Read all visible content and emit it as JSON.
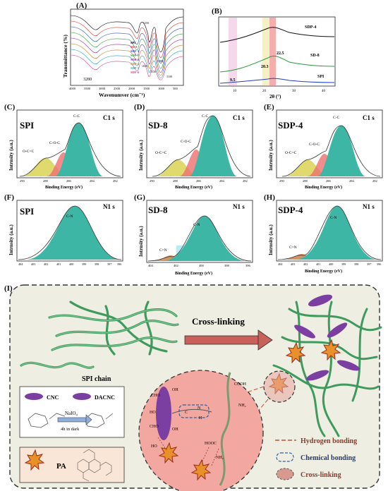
{
  "panels": {
    "A": {
      "label": "(A)",
      "xlabel": "Wavenumver (cm⁻¹)",
      "ylabel": "Transmittance (%)",
      "xticks": [
        "4000",
        "3500",
        "3000",
        "2500",
        "2000",
        "1500",
        "1000",
        "500"
      ],
      "legend": [
        "SPI",
        "SD-8",
        "SDF-1",
        "SDF-2",
        "SDP-3",
        "SDP-4",
        "SDP-5",
        "SDF-6"
      ],
      "annotations": {
        "a3280": "3280",
        "a1630": "1630",
        "a1530": "1530",
        "a1250": "1250",
        "a1380": "1380",
        "a1100": "1100"
      }
    },
    "B": {
      "label": "(B)",
      "xlabel": "2θ (°)",
      "xticks": [
        "10",
        "20",
        "30",
        "40"
      ],
      "series": [
        "SDP-4",
        "SD-8",
        "SPI"
      ],
      "peaks": {
        "p95": "9.5",
        "p203": "20.3",
        "p225": "22.5"
      }
    },
    "C": {
      "label": "(C)",
      "title": "SPI",
      "tag": "C1 s",
      "xlabel": "Binding Energy (eV)",
      "ylabel": "Intrnsity (a.u.)",
      "xticks": [
        "290",
        "288",
        "286",
        "284",
        "282"
      ],
      "peaks": {
        "occ": "O-C=C",
        "coc": "C-O-C",
        "cc": "C-C"
      }
    },
    "D": {
      "label": "(D)",
      "title": "SD-8",
      "tag": "C1 s",
      "xlabel": "Binding Energy (eV)",
      "ylabel": "Intrnsity (a.u.)",
      "xticks": [
        "290",
        "288",
        "286",
        "284",
        "282"
      ],
      "peaks": {
        "occ": "O-C=C",
        "coc": "C-O-C",
        "cc": "C-C"
      }
    },
    "E": {
      "label": "(E)",
      "title": "SDP-4",
      "tag": "C1 s",
      "xlabel": "Binding Energy (eV)",
      "ylabel": "Intrnsity (a.u.)",
      "xticks": [
        "290",
        "288",
        "286",
        "284",
        "282"
      ],
      "peaks": {
        "occ": "O-C=C",
        "coc": "C-O-C",
        "cc": "C-C"
      }
    },
    "F": {
      "label": "(F)",
      "title": "SPI",
      "tag": "N1 s",
      "xlabel": "Binding Energy (eV)",
      "ylabel": "Intrnsity (a.u.)",
      "xticks": [
        "404",
        "403",
        "402",
        "401",
        "400",
        "399",
        "398",
        "397",
        "396"
      ],
      "peaks": {
        "cn": "C-N"
      }
    },
    "G": {
      "label": "(G)",
      "title": "SD-8",
      "tag": "N1 s",
      "xlabel": "Binding Energy (eV)",
      "ylabel": "Intrnsity (a.u.)",
      "xticks": [
        "404",
        "402",
        "400",
        "398",
        "396"
      ],
      "peaks": {
        "cn": "C-N",
        "ceqn": "C=N"
      }
    },
    "H": {
      "label": "(H)",
      "title": "SDP-4",
      "tag": "N1 s",
      "xlabel": "Binding Energy (eV)",
      "ylabel": "Intrnsity (a.u.)",
      "xticks": [
        "404",
        "403",
        "402",
        "401",
        "400",
        "399",
        "398",
        "397",
        "396"
      ],
      "peaks": {
        "cn": "C-N",
        "ceqn": "C=N"
      }
    },
    "I": {
      "label": "(I)",
      "crosslinking": "Cross-linking",
      "spi_chain": "SPI chain",
      "cnc": "CNC",
      "dacnc": "DACNC",
      "reagent": "NaIO₄",
      "condition": "4h in dark",
      "pa": "PA",
      "legend": {
        "hbond": "Hydrogen bonding",
        "chem": "Chemical bonding",
        "xlink": "Cross-linking"
      },
      "chem": {
        "cho1": "CHO",
        "cho2": "CHO",
        "oh1": "OH",
        "ho1": "HO",
        "oh2": "OH",
        "ho2": "HO",
        "cooh": "COOH",
        "nh2": "NH₂",
        "hooc": "HOOC",
        "nh2b": "NH₂",
        "c": "C",
        "h": "H",
        "n": "N"
      }
    }
  },
  "colors": {
    "teal": "#3db6a6",
    "red": "#ee6f6f",
    "yellow": "#d8cf4a",
    "purple": "#7a3fa0",
    "green": "#3f9a5d",
    "beige": "#efeee3",
    "pink": "#f2a7a0"
  }
}
